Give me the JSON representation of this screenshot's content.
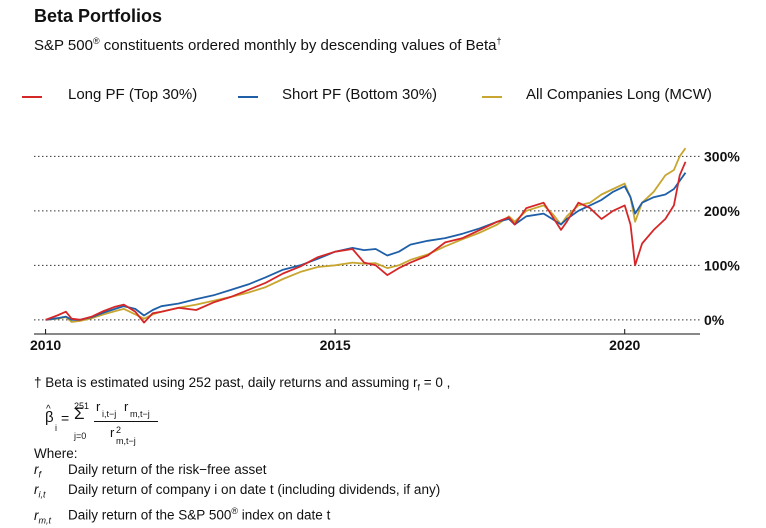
{
  "header": {
    "title": "Beta Portfolios",
    "subtitle": "S&P 500",
    "subtitle_mark": "®",
    "subtitle_rest": " constituents ordered monthly by descending values of Beta",
    "subtitle_dagger": "†"
  },
  "colors": {
    "long": "#d62728",
    "short": "#1f5fa8",
    "market": "#c8a630",
    "grid": "#333333"
  },
  "chart_data": {
    "type": "line",
    "title": "Beta Portfolios",
    "xlabel": "",
    "ylabel": "",
    "xlim": [
      2009.8,
      2021.3
    ],
    "ylim": [
      -15,
      330
    ],
    "x_ticks": [
      2010,
      2015,
      2020
    ],
    "x_tick_labels": [
      "2010",
      "2015",
      "2020"
    ],
    "y_ticks": [
      0,
      100,
      200,
      300
    ],
    "y_tick_labels": [
      "0%",
      "100%",
      "200%",
      "300%"
    ],
    "grid": "horizontal dotted",
    "legend_position": "top",
    "series": [
      {
        "name": "Long PF (Top 30%)",
        "color": "#d62728",
        "x": [
          2010.0,
          2010.2,
          2010.35,
          2010.45,
          2010.6,
          2010.8,
          2011.0,
          2011.2,
          2011.35,
          2011.55,
          2011.7,
          2011.85,
          2012.0,
          2012.3,
          2012.6,
          2012.9,
          2013.2,
          2013.5,
          2013.8,
          2014.1,
          2014.4,
          2014.7,
          2015.0,
          2015.3,
          2015.5,
          2015.7,
          2015.9,
          2016.1,
          2016.3,
          2016.6,
          2016.9,
          2017.2,
          2017.5,
          2017.8,
          2018.0,
          2018.1,
          2018.3,
          2018.6,
          2018.75,
          2018.9,
          2019.0,
          2019.2,
          2019.4,
          2019.6,
          2019.8,
          2020.0,
          2020.1,
          2020.18,
          2020.3,
          2020.5,
          2020.7,
          2020.85,
          2020.95,
          2021.05
        ],
        "values": [
          0,
          8,
          15,
          2,
          0,
          6,
          16,
          24,
          28,
          15,
          -5,
          12,
          15,
          22,
          18,
          32,
          42,
          55,
          68,
          85,
          98,
          115,
          125,
          130,
          105,
          100,
          82,
          95,
          105,
          118,
          142,
          150,
          165,
          180,
          188,
          175,
          205,
          215,
          190,
          165,
          180,
          215,
          205,
          185,
          200,
          210,
          175,
          100,
          140,
          165,
          185,
          210,
          265,
          290
        ]
      },
      {
        "name": "Short PF (Bottom 30%)",
        "color": "#1f5fa8",
        "x": [
          2010.0,
          2010.2,
          2010.35,
          2010.45,
          2010.6,
          2010.8,
          2011.0,
          2011.2,
          2011.35,
          2011.55,
          2011.7,
          2011.85,
          2012.0,
          2012.3,
          2012.6,
          2012.9,
          2013.2,
          2013.5,
          2013.8,
          2014.1,
          2014.4,
          2014.7,
          2015.0,
          2015.3,
          2015.5,
          2015.7,
          2015.9,
          2016.1,
          2016.3,
          2016.6,
          2016.9,
          2017.2,
          2017.5,
          2017.8,
          2018.0,
          2018.1,
          2018.3,
          2018.6,
          2018.75,
          2018.9,
          2019.0,
          2019.2,
          2019.4,
          2019.6,
          2019.8,
          2020.0,
          2020.1,
          2020.18,
          2020.3,
          2020.5,
          2020.7,
          2020.85,
          2020.95,
          2021.05
        ],
        "values": [
          0,
          3,
          6,
          0,
          0,
          5,
          13,
          20,
          25,
          20,
          8,
          18,
          25,
          30,
          38,
          45,
          55,
          65,
          78,
          92,
          100,
          112,
          125,
          132,
          128,
          130,
          118,
          125,
          138,
          145,
          150,
          158,
          168,
          180,
          185,
          175,
          190,
          195,
          185,
          175,
          185,
          200,
          210,
          220,
          235,
          245,
          225,
          195,
          215,
          225,
          230,
          240,
          255,
          270
        ]
      },
      {
        "name": "All Companies Long (MCW)",
        "color": "#c8a630",
        "x": [
          2010.0,
          2010.2,
          2010.35,
          2010.45,
          2010.6,
          2010.8,
          2011.0,
          2011.2,
          2011.35,
          2011.55,
          2011.7,
          2011.85,
          2012.0,
          2012.3,
          2012.6,
          2012.9,
          2013.2,
          2013.5,
          2013.8,
          2014.1,
          2014.4,
          2014.7,
          2015.0,
          2015.3,
          2015.5,
          2015.7,
          2015.9,
          2016.1,
          2016.3,
          2016.6,
          2016.9,
          2017.2,
          2017.5,
          2017.8,
          2018.0,
          2018.1,
          2018.3,
          2018.6,
          2018.75,
          2018.9,
          2019.0,
          2019.2,
          2019.4,
          2019.6,
          2019.8,
          2020.0,
          2020.1,
          2020.18,
          2020.3,
          2020.5,
          2020.7,
          2020.85,
          2020.95,
          2021.05
        ],
        "values": [
          0,
          2,
          5,
          -4,
          -2,
          3,
          10,
          16,
          20,
          10,
          2,
          10,
          15,
          22,
          28,
          35,
          42,
          50,
          60,
          75,
          88,
          97,
          100,
          105,
          103,
          104,
          95,
          100,
          110,
          120,
          135,
          148,
          160,
          175,
          190,
          180,
          200,
          210,
          195,
          175,
          190,
          210,
          215,
          230,
          240,
          250,
          225,
          180,
          215,
          235,
          265,
          275,
          300,
          315
        ]
      }
    ]
  },
  "footnote": {
    "line1": "† Beta is estimated using 252 past, daily returns and assuming r",
    "line1_sub": "f",
    "line1_end": " = 0 ,",
    "beta": "β",
    "beta_hat": "^",
    "beta_sub": "i",
    "equals": "=",
    "sigma": "Σ",
    "sum_top": "251",
    "sum_bottom": "j=0",
    "num_r1": "r",
    "num_r1_sub": "i,t−j",
    "num_r2": "r",
    "num_r2_sub": "m,t−j",
    "den_r": "r",
    "den_r_sup": "2",
    "den_r_sub": "m,t−j",
    "where": "Where:",
    "defs": [
      {
        "sym": "r",
        "sub": "f",
        "text": "Daily return of the risk−free asset"
      },
      {
        "sym": "r",
        "sub": "i,t",
        "text": "Daily return of company i on date t (including dividends, if any)"
      },
      {
        "sym": "r",
        "sub": "m,t",
        "text": "Daily return of the S&P 500"
      }
    ],
    "def3_mark": "®",
    "def3_end": " index on date t"
  }
}
